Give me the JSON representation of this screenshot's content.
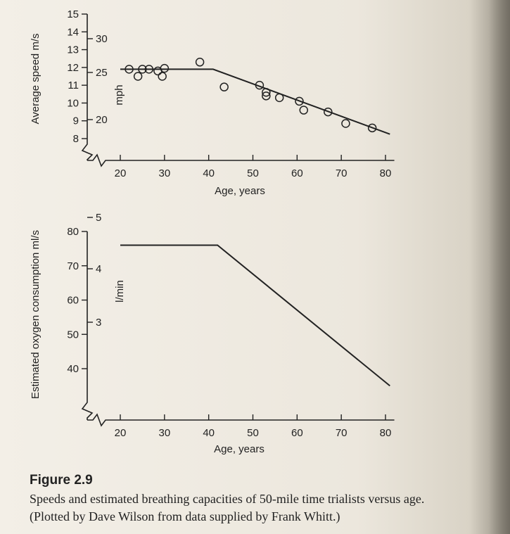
{
  "figure": {
    "title": "Figure 2.9",
    "caption_line1": "Speeds and estimated breathing capacities of 50-mile time trialists versus age.",
    "caption_line2": "(Plotted by Dave Wilson from data supplied by Frank Whitt.)"
  },
  "chart_data": [
    {
      "type": "scatter",
      "title": "",
      "xlabel": "Age, years",
      "ylabel": "Average speed m/s",
      "ylabel_secondary": "mph",
      "xlim": [
        16,
        84
      ],
      "ylim": [
        7.6,
        15.2
      ],
      "x_ticks": [
        20,
        30,
        40,
        50,
        60,
        70,
        80
      ],
      "y_ticks": [
        8,
        9,
        10,
        11,
        12,
        13,
        14,
        15
      ],
      "y2_ticks": [
        20,
        25,
        30
      ],
      "points": [
        [
          22,
          11.9
        ],
        [
          24,
          11.5
        ],
        [
          25,
          11.9
        ],
        [
          26.5,
          11.9
        ],
        [
          28.5,
          11.8
        ],
        [
          29.5,
          11.5
        ],
        [
          30,
          11.95
        ],
        [
          38,
          12.3
        ],
        [
          43.5,
          10.9
        ],
        [
          51.5,
          11.0
        ],
        [
          53,
          10.6
        ],
        [
          53,
          10.4
        ],
        [
          56,
          10.3
        ],
        [
          60.5,
          10.1
        ],
        [
          61.5,
          9.6
        ],
        [
          67,
          9.5
        ],
        [
          71,
          8.85
        ],
        [
          77,
          8.6
        ]
      ],
      "fit_line": [
        [
          20,
          11.9
        ],
        [
          41,
          11.9
        ],
        [
          81,
          8.25
        ]
      ]
    },
    {
      "type": "line",
      "title": "",
      "xlabel": "Age, years",
      "ylabel": "Estimated oxygen consumption ml/s",
      "ylabel_secondary": "l/min",
      "xlim": [
        16,
        84
      ],
      "ylim": [
        33,
        83
      ],
      "x_ticks": [
        20,
        30,
        40,
        50,
        60,
        70,
        80
      ],
      "y_ticks": [
        40,
        50,
        60,
        70,
        80
      ],
      "y2_ticks": [
        3,
        4,
        5
      ],
      "series": [
        {
          "values": [
            [
              20,
              76
            ],
            [
              42,
              76
            ],
            [
              81,
              35
            ]
          ]
        }
      ]
    }
  ]
}
